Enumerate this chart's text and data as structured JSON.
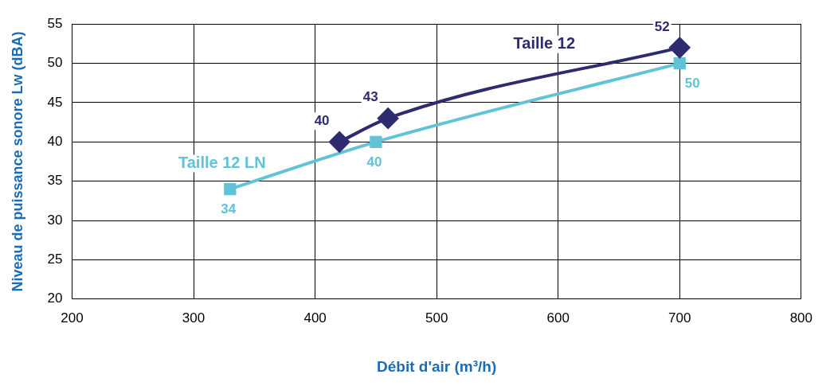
{
  "chart_data": {
    "type": "line",
    "xlabel": "Débit d'air (m³/h)",
    "ylabel": "Niveau de puissance sonore Lw (dBA)",
    "xlim": [
      200,
      800
    ],
    "xticks": [
      200,
      300,
      400,
      500,
      600,
      700,
      800
    ],
    "ylim": [
      20,
      55
    ],
    "yticks": [
      20,
      25,
      30,
      35,
      40,
      45,
      50,
      55
    ],
    "grid": true,
    "legend": false,
    "data_labels": true,
    "series": [
      {
        "name": "Taille 12",
        "color": "#2e2b6f",
        "marker": "diamond",
        "x": [
          420,
          460,
          700
        ],
        "values": [
          40,
          43,
          52
        ]
      },
      {
        "name": "Taille 12 LN",
        "color": "#62c2d6",
        "marker": "square",
        "x": [
          330,
          450,
          700
        ],
        "values": [
          34,
          40,
          50
        ]
      }
    ]
  }
}
